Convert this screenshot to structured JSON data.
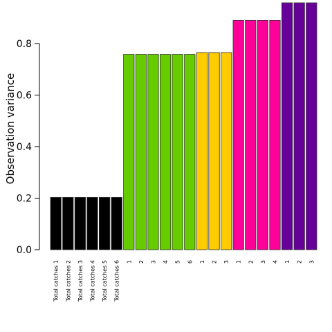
{
  "chart_data": {
    "type": "bar",
    "ylabel": "Observation variance",
    "xlabel": "",
    "ylim": [
      0,
      0.95
    ],
    "yticks": [
      "0.0",
      "0.2",
      "0.4",
      "0.6",
      "0.8"
    ],
    "grid": false,
    "categories": [
      "Total catches 1",
      "Total catches 2",
      "Total catches 3",
      "Total catches 4",
      "Total catches 5",
      "Total catches 6",
      "1",
      "2",
      "3",
      "4",
      "5",
      "6",
      "1",
      "2",
      "3",
      "1",
      "2",
      "3",
      "4",
      "1",
      "2",
      "3"
    ],
    "values": [
      0.203,
      0.203,
      0.203,
      0.203,
      0.203,
      0.203,
      0.758,
      0.758,
      0.758,
      0.758,
      0.758,
      0.758,
      0.765,
      0.765,
      0.765,
      0.89,
      0.89,
      0.89,
      0.89,
      0.958,
      0.958,
      0.958
    ],
    "colors": [
      "#000000",
      "#000000",
      "#000000",
      "#000000",
      "#000000",
      "#000000",
      "#66cc00",
      "#66cc00",
      "#66cc00",
      "#66cc00",
      "#66cc00",
      "#66cc00",
      "#ffcc00",
      "#ffcc00",
      "#ffcc00",
      "#ff0099",
      "#ff0099",
      "#ff0099",
      "#ff0099",
      "#660099",
      "#660099",
      "#660099"
    ]
  }
}
